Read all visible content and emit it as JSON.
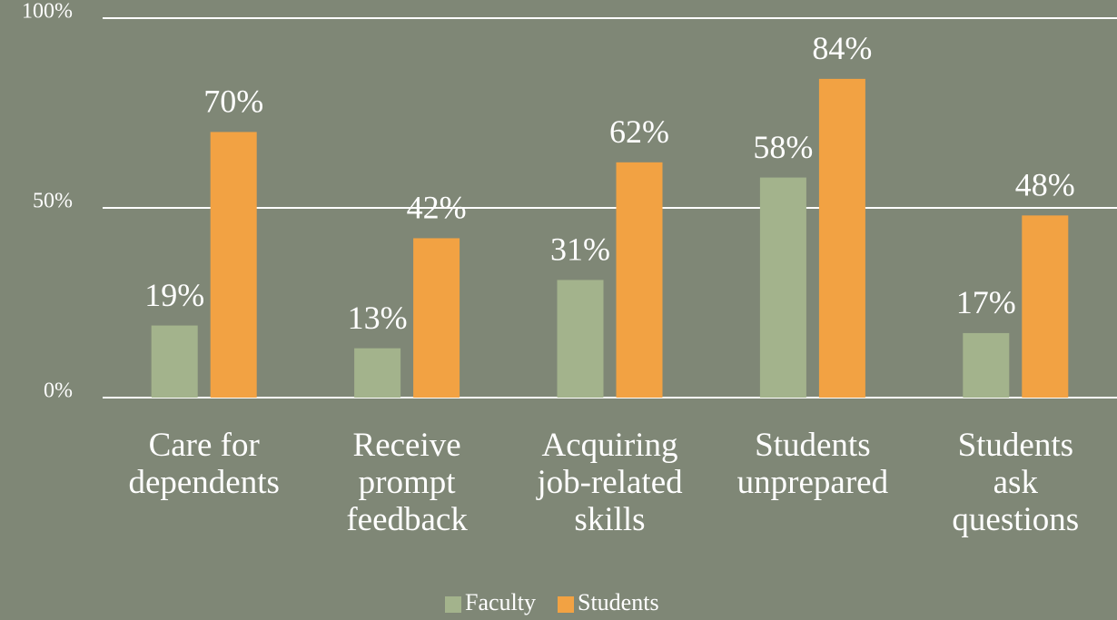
{
  "chart_data": {
    "type": "bar",
    "categories": [
      "Care for\ndependents",
      "Receive\nprompt\nfeedback",
      "Acquiring\njob-related\nskills",
      "Students\nunprepared",
      "Students\nask\nquestions"
    ],
    "series": [
      {
        "name": "Faculty",
        "color": "#a3b38c",
        "values": [
          19,
          13,
          31,
          58,
          17
        ],
        "value_labels": [
          "19%",
          "13%",
          "31%",
          "58%",
          "17%"
        ]
      },
      {
        "name": "Students",
        "color": "#f2a243",
        "values": [
          70,
          42,
          62,
          84,
          48
        ],
        "value_labels": [
          "70%",
          "42%",
          "62%",
          "84%",
          "48%"
        ]
      }
    ],
    "ylim": [
      0,
      100
    ],
    "yticks": [
      {
        "value": 0,
        "label": "0%"
      },
      {
        "value": 50,
        "label": "50%"
      },
      {
        "value": 100,
        "label": "100%"
      }
    ],
    "grid": true,
    "legend": "bottom"
  }
}
